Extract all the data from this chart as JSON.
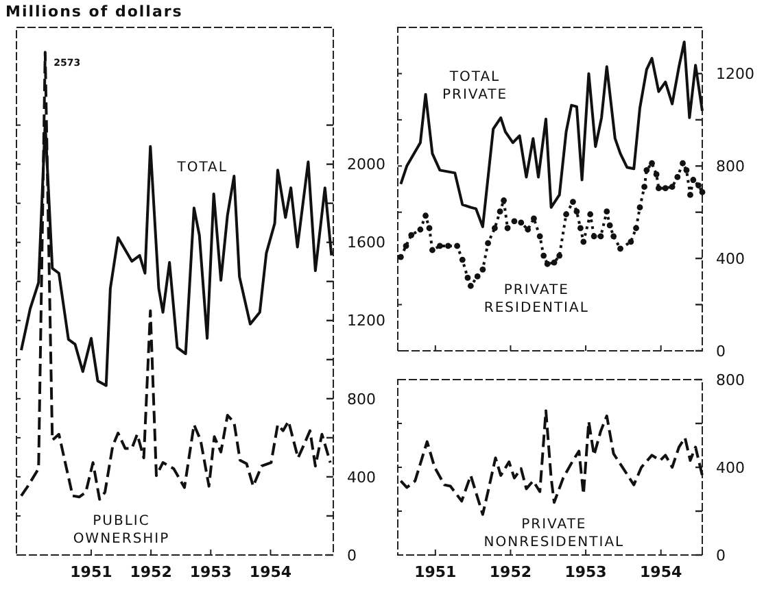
{
  "chart_data": [
    {
      "type": "line",
      "ylabel": "Millions of dollars",
      "annotations": [
        {
          "text": "2573",
          "x": 1950.73,
          "y": 2573
        }
      ],
      "xlim": [
        1950.25,
        1955.55
      ],
      "ylim": [
        0,
        2700
      ],
      "xticks": [
        {
          "value": 1951.5,
          "label": "1951"
        },
        {
          "value": 1952.5,
          "label": "1952"
        },
        {
          "value": 1953.5,
          "label": "1953"
        },
        {
          "value": 1954.5,
          "label": "1954"
        }
      ],
      "yticks": [
        0,
        {
          "value": 200,
          "label": null
        },
        400,
        {
          "value": 600,
          "label": null
        },
        800,
        {
          "value": 1000,
          "label": null
        },
        1200,
        {
          "value": 1400,
          "label": null
        },
        1600,
        {
          "value": 1800,
          "label": null
        },
        2000,
        {
          "value": 2200,
          "label": null
        }
      ],
      "grid": false,
      "legend": false,
      "series": [
        {
          "name": "TOTAL",
          "color": "#111111",
          "line_style": "solid",
          "marker": "none",
          "x": [
            1950.33,
            1950.48,
            1950.62,
            1950.73,
            1950.85,
            1950.96,
            1951.12,
            1951.23,
            1951.36,
            1951.5,
            1951.61,
            1951.75,
            1951.82,
            1951.95,
            1952.18,
            1952.31,
            1952.4,
            1952.49,
            1952.63,
            1952.7,
            1952.81,
            1952.94,
            1953.08,
            1953.22,
            1953.31,
            1953.44,
            1953.55,
            1953.67,
            1953.78,
            1953.89,
            1953.98,
            1954.16,
            1954.32,
            1954.43,
            1954.57,
            1954.62,
            1954.75,
            1954.84,
            1954.95,
            1955.13,
            1955.25,
            1955.41,
            1955.52
          ],
          "values": [
            1048,
            1261,
            1394,
            2212,
            1467,
            1442,
            1103,
            1079,
            939,
            1109,
            891,
            867,
            1364,
            1624,
            1503,
            1533,
            1442,
            2091,
            1364,
            1242,
            1497,
            1061,
            1030,
            1776,
            1636,
            1109,
            1848,
            1406,
            1739,
            1939,
            1424,
            1182,
            1242,
            1545,
            1697,
            1970,
            1727,
            1879,
            1576,
            2012,
            1455,
            1879,
            1533
          ]
        },
        {
          "name": "PUBLIC OWNERSHIP",
          "color": "#111111",
          "line_style": "dashed",
          "marker": "none",
          "x": [
            1950.33,
            1950.44,
            1950.62,
            1950.73,
            1950.85,
            1950.96,
            1951.07,
            1951.19,
            1951.3,
            1951.41,
            1951.53,
            1951.64,
            1951.73,
            1951.86,
            1951.95,
            1952.07,
            1952.18,
            1952.27,
            1952.38,
            1952.49,
            1952.59,
            1952.7,
            1952.88,
            1953.06,
            1953.22,
            1953.33,
            1953.47,
            1953.56,
            1953.67,
            1953.78,
            1953.89,
            1953.99,
            1954.1,
            1954.21,
            1954.35,
            1954.51,
            1954.62,
            1954.71,
            1954.8,
            1954.96,
            1955.05,
            1955.16,
            1955.25,
            1955.36,
            1955.5
          ],
          "values": [
            303,
            352,
            442,
            2573,
            588,
            618,
            467,
            303,
            297,
            321,
            473,
            285,
            321,
            558,
            624,
            545,
            545,
            618,
            497,
            1250,
            406,
            473,
            442,
            345,
            667,
            588,
            352,
            606,
            527,
            715,
            679,
            485,
            467,
            352,
            455,
            473,
            667,
            636,
            685,
            497,
            558,
            636,
            455,
            618,
            473
          ]
        }
      ]
    },
    {
      "type": "line",
      "xlim": [
        1951,
        1955.05
      ],
      "ylim": [
        0,
        1400
      ],
      "xticks": [
        {
          "value": 1951.5,
          "label": null
        },
        {
          "value": 1952.5,
          "label": null
        },
        {
          "value": 1953.5,
          "label": null
        },
        {
          "value": 1954.5,
          "label": null
        }
      ],
      "yticks": [
        0,
        {
          "value": 200,
          "label": null
        },
        400,
        {
          "value": 600,
          "label": null
        },
        800,
        {
          "value": 1000,
          "label": null
        },
        1200
      ],
      "tick_labels": "y",
      "grid": false,
      "legend": false,
      "series": [
        {
          "name": "TOTAL PRIVATE",
          "color": "#111111",
          "line_style": "solid",
          "marker": "none",
          "x": [
            1951.04,
            1951.12,
            1951.3,
            1951.37,
            1951.46,
            1951.56,
            1951.76,
            1951.86,
            1951.97,
            1952.04,
            1952.13,
            1952.27,
            1952.37,
            1952.43,
            1952.53,
            1952.62,
            1952.71,
            1952.8,
            1952.87,
            1952.97,
            1953.04,
            1953.15,
            1953.24,
            1953.31,
            1953.38,
            1953.45,
            1953.54,
            1953.63,
            1953.71,
            1953.78,
            1953.89,
            1953.96,
            1954.05,
            1954.14,
            1954.22,
            1954.31,
            1954.38,
            1954.47,
            1954.56,
            1954.65,
            1954.74,
            1954.81,
            1954.88,
            1954.96,
            1955.05
          ],
          "values": [
            722,
            800,
            901,
            1110,
            854,
            782,
            770,
            633,
            621,
            615,
            537,
            961,
            1009,
            949,
            901,
            931,
            752,
            919,
            752,
            1003,
            621,
            675,
            949,
            1063,
            1057,
            740,
            1200,
            884,
            1009,
            1230,
            919,
            854,
            794,
            788,
            1051,
            1218,
            1266,
            1122,
            1164,
            1069,
            1230,
            1337,
            1009,
            1236,
            1039
          ]
        },
        {
          "name": "PRIVATE RESIDENTIAL",
          "color": "#111111",
          "line_style": "dotted",
          "marker": "circle",
          "x": [
            1951.04,
            1951.11,
            1951.18,
            1951.3,
            1951.37,
            1951.42,
            1951.46,
            1951.56,
            1951.67,
            1951.79,
            1951.86,
            1951.93,
            1951.97,
            1952.06,
            1952.13,
            1952.2,
            1952.29,
            1952.36,
            1952.41,
            1952.46,
            1952.55,
            1952.64,
            1952.73,
            1952.81,
            1952.89,
            1952.94,
            1952.99,
            1953.08,
            1953.15,
            1953.24,
            1953.33,
            1953.38,
            1953.43,
            1953.47,
            1953.56,
            1953.61,
            1953.7,
            1953.78,
            1953.82,
            1953.87,
            1953.96,
            1954.1,
            1954.17,
            1954.22,
            1954.28,
            1954.31,
            1954.38,
            1954.44,
            1954.47,
            1954.56,
            1954.65,
            1954.72,
            1954.79,
            1954.84,
            1954.89,
            1954.93,
            1955,
            1955.05
          ],
          "values": [
            406,
            454,
            501,
            525,
            585,
            531,
            436,
            454,
            454,
            454,
            394,
            316,
            281,
            322,
            352,
            466,
            531,
            603,
            651,
            531,
            561,
            555,
            525,
            573,
            496,
            412,
            376,
            382,
            412,
            591,
            645,
            603,
            531,
            472,
            591,
            496,
            496,
            603,
            543,
            496,
            442,
            472,
            531,
            621,
            710,
            782,
            812,
            764,
            704,
            704,
            710,
            752,
            812,
            782,
            675,
            740,
            716,
            687
          ]
        }
      ]
    },
    {
      "type": "line",
      "xlim": [
        1951,
        1955.05
      ],
      "ylim": [
        0,
        800
      ],
      "xticks": [
        {
          "value": 1951.5,
          "label": "1951"
        },
        {
          "value": 1952.5,
          "label": "1952"
        },
        {
          "value": 1953.5,
          "label": "1953"
        },
        {
          "value": 1954.5,
          "label": "1954"
        }
      ],
      "yticks": [
        0,
        {
          "value": 200,
          "label": null
        },
        400,
        {
          "value": 600,
          "label": null
        },
        800
      ],
      "grid": false,
      "legend": false,
      "series": [
        {
          "name": "PRIVATE NONRESIDENTIAL",
          "color": "#111111",
          "line_style": "dashed",
          "marker": "none",
          "x": [
            1951.04,
            1951.12,
            1951.23,
            1951.39,
            1951.49,
            1951.62,
            1951.7,
            1951.85,
            1951.97,
            1952.13,
            1952.2,
            1952.3,
            1952.37,
            1952.48,
            1952.55,
            1952.64,
            1952.71,
            1952.8,
            1952.89,
            1952.97,
            1953.04,
            1953.08,
            1953.2,
            1953.33,
            1953.41,
            1953.47,
            1953.54,
            1953.61,
            1953.7,
            1953.78,
            1953.87,
            1954,
            1954.14,
            1954.24,
            1954.38,
            1954.49,
            1954.56,
            1954.65,
            1954.74,
            1954.82,
            1954.89,
            1954.96,
            1955.05
          ],
          "values": [
            338,
            308,
            338,
            517,
            400,
            320,
            314,
            246,
            363,
            185,
            289,
            443,
            363,
            425,
            351,
            394,
            302,
            338,
            289,
            658,
            351,
            240,
            351,
            431,
            474,
            277,
            609,
            455,
            566,
            634,
            462,
            394,
            320,
            400,
            455,
            431,
            455,
            400,
            492,
            535,
            431,
            492,
            363
          ]
        }
      ]
    }
  ]
}
